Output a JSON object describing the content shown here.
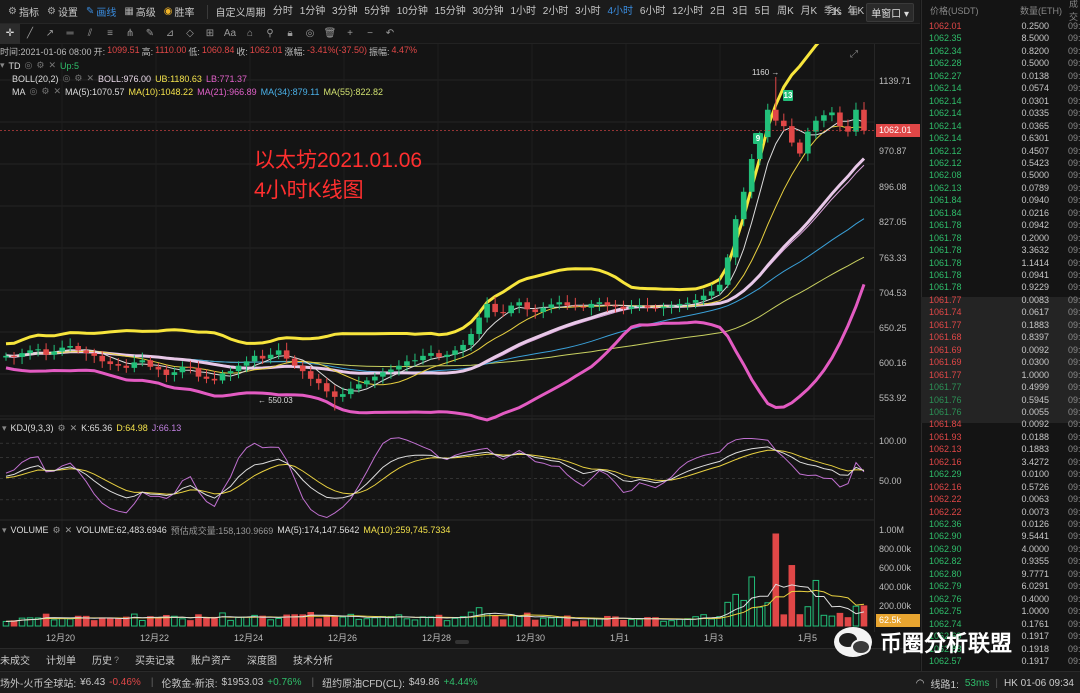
{
  "toolbar": {
    "indicators_label": "指标",
    "settings_label": "设置",
    "draw_label": "画线",
    "advanced_label": "高级",
    "victory_label": "胜率",
    "custom_period_label": "自定义周期",
    "periods": [
      "分时",
      "1分钟",
      "3分钟",
      "5分钟",
      "10分钟",
      "15分钟",
      "30分钟",
      "1小时",
      "2小时",
      "3小时",
      "4小时",
      "6小时",
      "12小时",
      "2日",
      "3日",
      "5日",
      "周K",
      "月K",
      "季K",
      "年K",
      "1日"
    ],
    "active_period": "4小时",
    "interval_label": "1s",
    "window_label": "单窗口 ▾"
  },
  "ohlc": {
    "time": "时间:2021-01-06 08:00",
    "open_label": "开:",
    "open": "1099.51",
    "high_label": "高:",
    "high": "1110.00",
    "low_label": "低:",
    "low": "1060.84",
    "close_label": "收:",
    "close": "1062.01",
    "change_label": "涨幅:",
    "change": "-3.41%(-37.50)",
    "amp_label": "振幅:",
    "amp": "4.47%"
  },
  "indicators": {
    "td": {
      "name": "TD",
      "value": "Up:5"
    },
    "boll": {
      "name": "BOLL(20,2)",
      "boll": "BOLL:976.00",
      "ub": "UB:1180.63",
      "lb": "LB:771.37"
    },
    "ma": {
      "name": "MA",
      "ma5": "MA(5):1070.57",
      "ma10": "MA(10):1048.22",
      "ma21": "MA(21):966.89",
      "ma34": "MA(34):879.11",
      "ma55": "MA(55):822.82"
    },
    "kdj": {
      "name": "KDJ(9,3,3)",
      "k": "K:65.36",
      "d": "D:64.98",
      "j": "J:66.13"
    },
    "volume": {
      "name": "VOLUME",
      "vol": "VOLUME:62,483.6946",
      "est": "预估成交量:158,130.9669",
      "ma5": "MA(5):174,147.5642",
      "ma10": "MA(10):259,745.7334"
    }
  },
  "annotation": {
    "line1": "以太坊2021.01.06",
    "line2": "4小时K线图"
  },
  "price_axis": {
    "labels": [
      "1139.71",
      "970.87",
      "896.08",
      "827.05",
      "763.33",
      "704.53",
      "650.25",
      "600.16",
      "553.92"
    ],
    "current": "1062.01"
  },
  "kdj_axis": {
    "labels": [
      "100.00",
      "50.00"
    ]
  },
  "vol_axis": {
    "labels": [
      "1.00M",
      "800.00k",
      "600.00k",
      "400.00k",
      "200.00k"
    ],
    "current": "62.5k"
  },
  "time_axis": {
    "labels": [
      "12月20",
      "12月22",
      "12月24",
      "12月26",
      "12月28",
      "12月30",
      "1月1",
      "1月3",
      "1月5"
    ]
  },
  "peaks": {
    "high": "1160 →",
    "low": "← 550.03"
  },
  "td_counts": [
    "9",
    "13"
  ],
  "chart_data": {
    "type": "candlestick",
    "interval": "4h",
    "y_range": [
      540,
      1180
    ],
    "highlights": {
      "high": 1160,
      "low": 550.03
    },
    "close_series": [
      650,
      648,
      655,
      660,
      662,
      652,
      658,
      665,
      668,
      660,
      655,
      650,
      640,
      635,
      632,
      628,
      638,
      642,
      630,
      625,
      615,
      620,
      630,
      628,
      612,
      608,
      605,
      618,
      622,
      632,
      640,
      650,
      645,
      652,
      660,
      645,
      632,
      622,
      608,
      600,
      585,
      575,
      580,
      590,
      598,
      605,
      612,
      620,
      625,
      632,
      640,
      642,
      650,
      655,
      648,
      652,
      660,
      670,
      690,
      720,
      745,
      730,
      728,
      742,
      748,
      735,
      730,
      738,
      744,
      748,
      742,
      740,
      738,
      745,
      748,
      742,
      740,
      736,
      740,
      742,
      738,
      737,
      740,
      742,
      745,
      747,
      752,
      760,
      768,
      780,
      830,
      900,
      950,
      1010,
      1050,
      1100,
      1080,
      1070,
      1040,
      1020,
      1060,
      1080,
      1090,
      1095,
      1070,
      1060,
      1100,
      1062
    ]
  },
  "trades": {
    "header": {
      "price": "价格(USDT)",
      "qty": "数量(ETH)",
      "time": "成交"
    },
    "rows": [
      {
        "p": "1062.01",
        "q": "0.2500",
        "s": "sell"
      },
      {
        "p": "1062.35",
        "q": "8.5000",
        "s": "buy"
      },
      {
        "p": "1062.34",
        "q": "0.8200",
        "s": "buy"
      },
      {
        "p": "1062.28",
        "q": "0.5000",
        "s": "buy"
      },
      {
        "p": "1062.27",
        "q": "0.0138",
        "s": "buy"
      },
      {
        "p": "1062.14",
        "q": "0.0574",
        "s": "buy"
      },
      {
        "p": "1062.14",
        "q": "0.0301",
        "s": "buy"
      },
      {
        "p": "1062.14",
        "q": "0.0335",
        "s": "buy"
      },
      {
        "p": "1062.14",
        "q": "0.0365",
        "s": "buy"
      },
      {
        "p": "1062.14",
        "q": "0.6301",
        "s": "buy"
      },
      {
        "p": "1062.12",
        "q": "0.4507",
        "s": "buy"
      },
      {
        "p": "1062.12",
        "q": "0.5423",
        "s": "buy"
      },
      {
        "p": "1062.08",
        "q": "0.5000",
        "s": "buy"
      },
      {
        "p": "1062.13",
        "q": "0.0789",
        "s": "buy"
      },
      {
        "p": "1061.84",
        "q": "0.0940",
        "s": "buy"
      },
      {
        "p": "1061.84",
        "q": "0.0216",
        "s": "buy"
      },
      {
        "p": "1061.78",
        "q": "0.0942",
        "s": "buy"
      },
      {
        "p": "1061.78",
        "q": "0.2000",
        "s": "buy"
      },
      {
        "p": "1061.78",
        "q": "3.3632",
        "s": "buy"
      },
      {
        "p": "1061.78",
        "q": "1.1414",
        "s": "buy"
      },
      {
        "p": "1061.78",
        "q": "0.0941",
        "s": "buy"
      },
      {
        "p": "1061.78",
        "q": "0.9229",
        "s": "buy"
      },
      {
        "p": "1061.77",
        "q": "0.0083",
        "s": "sell"
      },
      {
        "p": "1061.74",
        "q": "0.0617",
        "s": "sell"
      },
      {
        "p": "1061.77",
        "q": "0.1883",
        "s": "sell"
      },
      {
        "p": "1061.68",
        "q": "0.8397",
        "s": "sell"
      },
      {
        "p": "1061.69",
        "q": "0.0092",
        "s": "sell"
      },
      {
        "p": "1061.69",
        "q": "0.0300",
        "s": "sell"
      },
      {
        "p": "1061.77",
        "q": "1.0000",
        "s": "sell"
      },
      {
        "p": "1061.77",
        "q": "0.4999",
        "s": "buy"
      },
      {
        "p": "1061.76",
        "q": "0.5945",
        "s": "buy"
      },
      {
        "p": "1061.76",
        "q": "0.0055",
        "s": "buy"
      },
      {
        "p": "1061.84",
        "q": "0.0092",
        "s": "sell"
      },
      {
        "p": "1061.93",
        "q": "0.0188",
        "s": "sell"
      },
      {
        "p": "1062.13",
        "q": "0.1883",
        "s": "sell"
      },
      {
        "p": "1062.16",
        "q": "3.4272",
        "s": "sell"
      },
      {
        "p": "1062.29",
        "q": "0.0100",
        "s": "buy"
      },
      {
        "p": "1062.16",
        "q": "0.5726",
        "s": "sell"
      },
      {
        "p": "1062.22",
        "q": "0.0063",
        "s": "sell"
      },
      {
        "p": "1062.22",
        "q": "0.0073",
        "s": "sell"
      },
      {
        "p": "1062.36",
        "q": "0.0126",
        "s": "buy"
      },
      {
        "p": "1062.90",
        "q": "9.5441",
        "s": "buy"
      },
      {
        "p": "1062.90",
        "q": "4.0000",
        "s": "buy"
      },
      {
        "p": "1062.82",
        "q": "0.9355",
        "s": "buy"
      },
      {
        "p": "1062.80",
        "q": "9.7771",
        "s": "buy"
      },
      {
        "p": "1062.79",
        "q": "6.0291",
        "s": "buy"
      },
      {
        "p": "1062.76",
        "q": "0.4000",
        "s": "buy"
      },
      {
        "p": "1062.75",
        "q": "1.0000",
        "s": "buy"
      },
      {
        "p": "1062.74",
        "q": "0.1761",
        "s": "buy"
      },
      {
        "p": "1062.69",
        "q": "0.1917",
        "s": "buy"
      },
      {
        "p": "1062.88",
        "q": "0.1918",
        "s": "buy"
      },
      {
        "p": "1062.57",
        "q": "0.1917",
        "s": "buy"
      }
    ],
    "time_prefix": "09:3"
  },
  "bottom_tabs": [
    "未成交",
    "计划单",
    "历史",
    "买卖记录",
    "账户资产",
    "深度图",
    "技术分析"
  ],
  "ticker": {
    "items": [
      {
        "name": "场外-火币全球站:",
        "price": "¥6.43",
        "chg": "-0.46%",
        "dir": "neg"
      },
      {
        "name": "伦敦金-新浪:",
        "price": "$1953.03",
        "chg": "+0.76%",
        "dir": "pos"
      },
      {
        "name": "纽约原油CFD(CL):",
        "price": "$49.86",
        "chg": "+4.44%",
        "dir": "pos"
      }
    ],
    "latency_label": "线路1:",
    "latency": "53ms",
    "clock": "HK 01-06 09:34"
  },
  "watermark": "币圈分析联盟",
  "colors": {
    "up": "#22c07a",
    "down": "#e04747",
    "boll_upper": "#f7e53c",
    "boll_lower": "#e35bc2",
    "boll_mid": "#e8c8e8",
    "accent": "#3a8de0"
  }
}
